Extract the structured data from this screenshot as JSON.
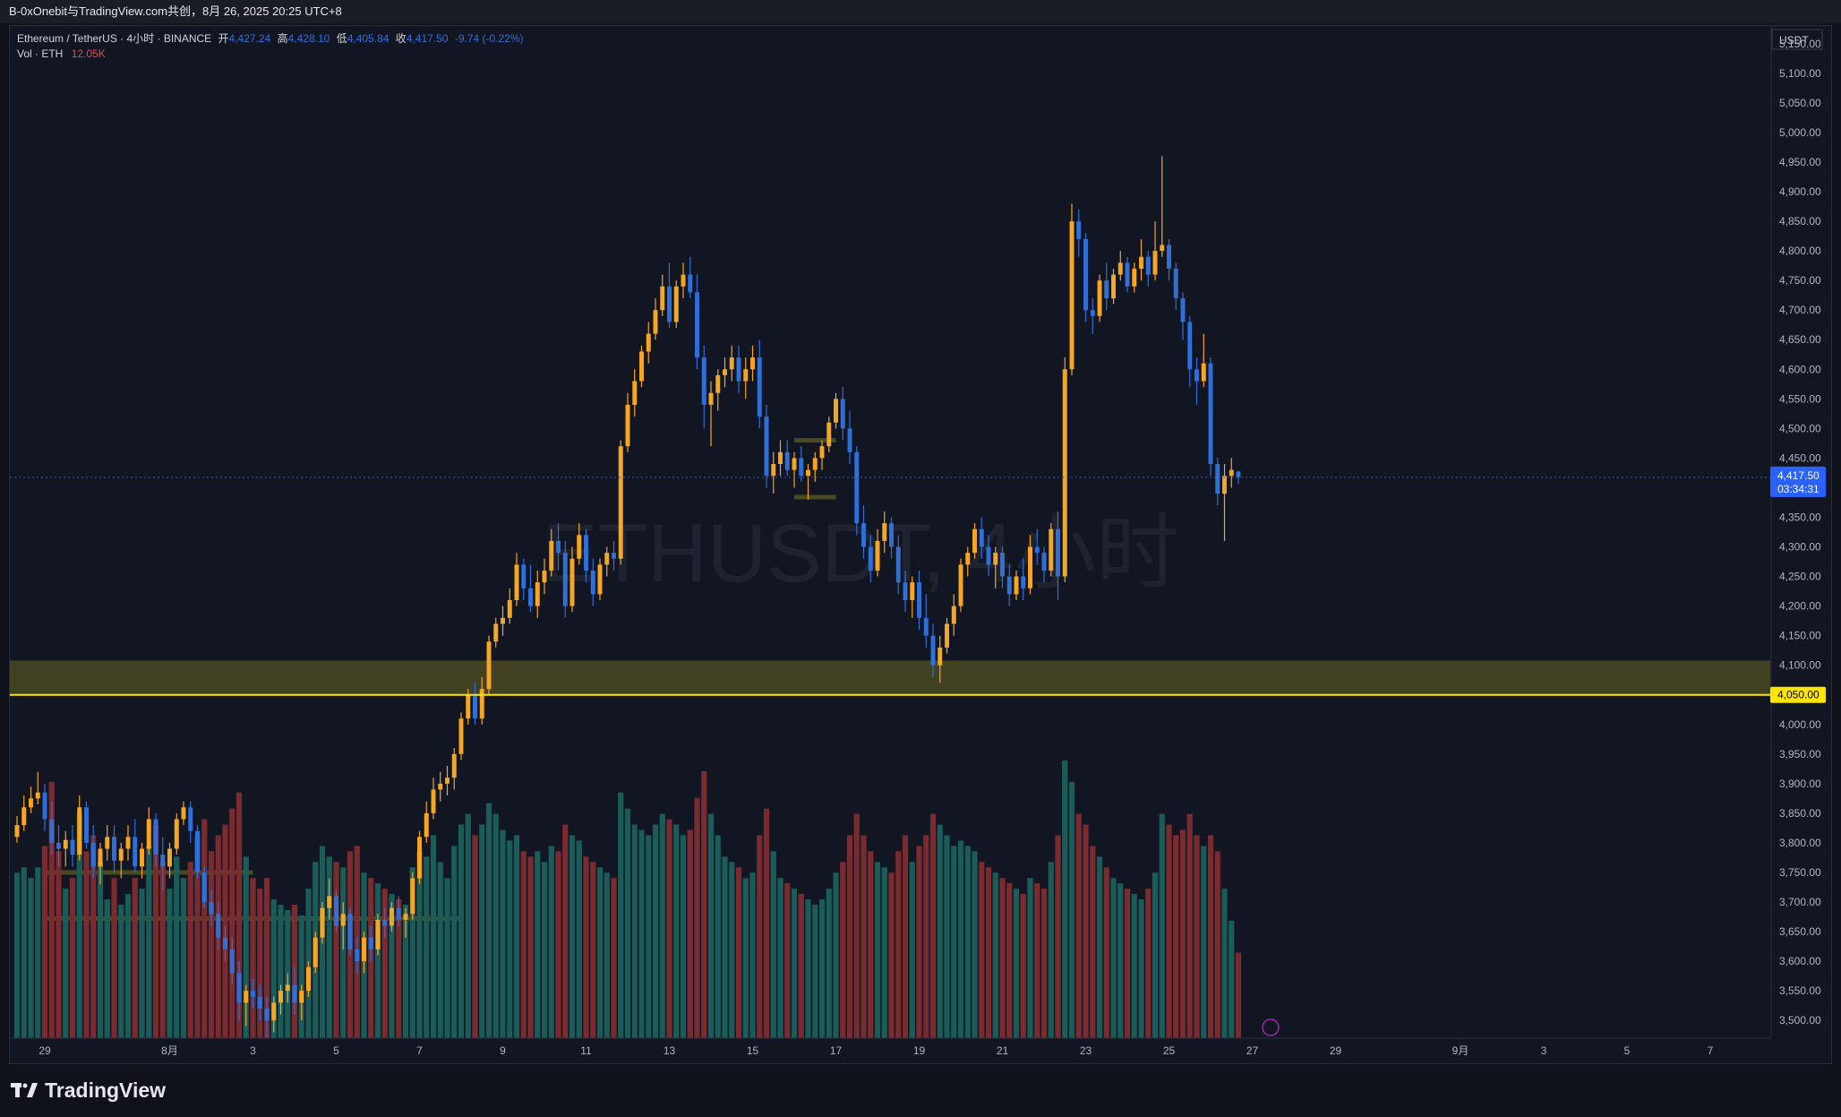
{
  "header": {
    "share_text": "B-0xOnebit与TradingView.com共创，8月 26, 2025 20:25 UTC+8"
  },
  "legend": {
    "symbol": "Ethereum / TetherUS · 4小时 · BINANCE",
    "open_label": "开",
    "open": "4,427.24",
    "high_label": "高",
    "high": "4,428.10",
    "low_label": "低",
    "low": "4,405.84",
    "close_label": "收",
    "close": "4,417.50",
    "change": "-9.74 (-0.22%)",
    "volume_label": "Vol · ETH",
    "volume": "12.05K"
  },
  "watermark": "ETHUSDT, 4小时",
  "footer": {
    "brand": "TradingView"
  },
  "chart_data": {
    "type": "candlestick",
    "currency": "USDT",
    "y_axis": {
      "ylim": [
        3470,
        5180
      ],
      "ticks": [
        "5,150.00",
        "5,100.00",
        "5,050.00",
        "5,000.00",
        "4,950.00",
        "4,900.00",
        "4,850.00",
        "4,800.00",
        "4,750.00",
        "4,700.00",
        "4,650.00",
        "4,600.00",
        "4,550.00",
        "4,500.00",
        "4,450.00",
        "4,400.00",
        "4,350.00",
        "4,300.00",
        "4,250.00",
        "4,200.00",
        "4,150.00",
        "4,100.00",
        "4,050.00",
        "4,000.00",
        "3,950.00",
        "3,900.00",
        "3,850.00",
        "3,800.00",
        "3,750.00",
        "3,700.00",
        "3,650.00",
        "3,600.00",
        "3,550.00",
        "3,500.00"
      ]
    },
    "x_axis": {
      "tick_labels": [
        "29",
        "8月",
        "3",
        "5",
        "7",
        "9",
        "11",
        "13",
        "15",
        "17",
        "19",
        "21",
        "23",
        "25",
        "27",
        "29",
        "9月",
        "3",
        "5",
        "7"
      ],
      "tick_dates": [
        "2025-07-29",
        "2025-08-01",
        "2025-08-03",
        "2025-08-05",
        "2025-08-07",
        "2025-08-09",
        "2025-08-11",
        "2025-08-13",
        "2025-08-15",
        "2025-08-17",
        "2025-08-19",
        "2025-08-21",
        "2025-08-23",
        "2025-08-25",
        "2025-08-27",
        "2025-08-29",
        "2025-09-01",
        "2025-09-03",
        "2025-09-05",
        "2025-09-07"
      ]
    },
    "price_labels": {
      "last_price": "4,417.50",
      "countdown": "03:34:31",
      "level": "4,050.00"
    },
    "zones": [
      {
        "from_price": 4050,
        "to_price": 4108,
        "color": "#4a4a22"
      },
      {
        "price": 3750,
        "from": "2025-07-29",
        "to": "2025-08-03",
        "color": "#4a4a22"
      },
      {
        "price": 3672,
        "from": "2025-07-29",
        "to": "2025-08-08",
        "color": "#4a4a22"
      },
      {
        "price": 4480,
        "from": "2025-08-16",
        "to": "2025-08-17",
        "color": "#4a4a22"
      },
      {
        "price": 4384,
        "from": "2025-08-16",
        "to": "2025-08-17",
        "color": "#4a4a22"
      }
    ],
    "horizontal_line": {
      "price": 4050,
      "color": "#ffe600"
    },
    "colors": {
      "up": "#f5a623",
      "down": "#2f6fd6",
      "vol_up": "#1a5c58",
      "vol_down": "#7a2b30",
      "zone": "#4a4a22",
      "level_line": "#ffe600",
      "last_price_bg": "#2962ff"
    },
    "first_bar_time": "2025-07-28 08:00",
    "bar_interval_hours": 4,
    "ohlcv": [
      [
        3810,
        3845,
        3800,
        3830,
        310
      ],
      [
        3830,
        3880,
        3820,
        3860,
        320
      ],
      [
        3860,
        3895,
        3850,
        3875,
        300
      ],
      [
        3875,
        3920,
        3865,
        3885,
        320
      ],
      [
        3885,
        3900,
        3820,
        3840,
        360
      ],
      [
        3840,
        3870,
        3780,
        3800,
        480
      ],
      [
        3800,
        3830,
        3760,
        3790,
        350
      ],
      [
        3790,
        3820,
        3760,
        3805,
        280
      ],
      [
        3805,
        3830,
        3760,
        3780,
        300
      ],
      [
        3780,
        3880,
        3770,
        3860,
        420
      ],
      [
        3860,
        3870,
        3790,
        3800,
        350
      ],
      [
        3800,
        3830,
        3740,
        3760,
        380
      ],
      [
        3760,
        3800,
        3730,
        3790,
        330
      ],
      [
        3790,
        3830,
        3770,
        3810,
        260
      ],
      [
        3810,
        3830,
        3750,
        3770,
        300
      ],
      [
        3770,
        3800,
        3740,
        3790,
        250
      ],
      [
        3790,
        3830,
        3770,
        3810,
        270
      ],
      [
        3810,
        3840,
        3750,
        3760,
        300
      ],
      [
        3760,
        3800,
        3740,
        3790,
        280
      ],
      [
        3790,
        3860,
        3780,
        3840,
        360
      ],
      [
        3840,
        3850,
        3760,
        3780,
        400
      ],
      [
        3780,
        3810,
        3720,
        3760,
        330
      ],
      [
        3760,
        3800,
        3740,
        3790,
        280
      ],
      [
        3790,
        3850,
        3780,
        3840,
        340
      ],
      [
        3840,
        3870,
        3830,
        3860,
        300
      ],
      [
        3860,
        3870,
        3800,
        3820,
        330
      ],
      [
        3820,
        3830,
        3740,
        3750,
        380
      ],
      [
        3750,
        3760,
        3690,
        3700,
        410
      ],
      [
        3700,
        3720,
        3660,
        3680,
        350
      ],
      [
        3680,
        3700,
        3620,
        3640,
        380
      ],
      [
        3640,
        3660,
        3600,
        3620,
        400
      ],
      [
        3620,
        3640,
        3560,
        3580,
        430
      ],
      [
        3580,
        3600,
        3500,
        3530,
        460
      ],
      [
        3530,
        3560,
        3490,
        3550,
        340
      ],
      [
        3550,
        3570,
        3520,
        3540,
        300
      ],
      [
        3540,
        3560,
        3500,
        3520,
        280
      ],
      [
        3520,
        3540,
        3470,
        3500,
        300
      ],
      [
        3500,
        3540,
        3480,
        3530,
        260
      ],
      [
        3530,
        3560,
        3510,
        3550,
        250
      ],
      [
        3550,
        3580,
        3530,
        3560,
        240
      ],
      [
        3560,
        3590,
        3510,
        3530,
        250
      ],
      [
        3530,
        3560,
        3500,
        3550,
        230
      ],
      [
        3550,
        3600,
        3540,
        3590,
        280
      ],
      [
        3590,
        3650,
        3580,
        3640,
        330
      ],
      [
        3640,
        3700,
        3630,
        3690,
        360
      ],
      [
        3690,
        3740,
        3670,
        3710,
        340
      ],
      [
        3710,
        3720,
        3650,
        3660,
        330
      ],
      [
        3660,
        3700,
        3620,
        3680,
        320
      ],
      [
        3680,
        3690,
        3610,
        3620,
        350
      ],
      [
        3620,
        3640,
        3580,
        3600,
        360
      ],
      [
        3600,
        3650,
        3580,
        3640,
        310
      ],
      [
        3640,
        3660,
        3600,
        3620,
        300
      ],
      [
        3620,
        3680,
        3610,
        3670,
        290
      ],
      [
        3670,
        3690,
        3640,
        3660,
        280
      ],
      [
        3660,
        3700,
        3650,
        3690,
        270
      ],
      [
        3690,
        3710,
        3660,
        3670,
        260
      ],
      [
        3670,
        3690,
        3640,
        3680,
        250
      ],
      [
        3680,
        3750,
        3670,
        3740,
        320
      ],
      [
        3740,
        3820,
        3730,
        3810,
        350
      ],
      [
        3810,
        3870,
        3800,
        3850,
        340
      ],
      [
        3850,
        3910,
        3840,
        3890,
        380
      ],
      [
        3890,
        3920,
        3870,
        3900,
        330
      ],
      [
        3900,
        3930,
        3880,
        3910,
        300
      ],
      [
        3910,
        3960,
        3890,
        3950,
        360
      ],
      [
        3950,
        4020,
        3940,
        4010,
        400
      ],
      [
        4010,
        4060,
        4000,
        4050,
        420
      ],
      [
        4050,
        4070,
        4000,
        4010,
        380
      ],
      [
        4010,
        4080,
        4000,
        4060,
        400
      ],
      [
        4060,
        4150,
        4050,
        4140,
        440
      ],
      [
        4140,
        4180,
        4130,
        4170,
        420
      ],
      [
        4170,
        4200,
        4150,
        4180,
        390
      ],
      [
        4180,
        4230,
        4170,
        4210,
        370
      ],
      [
        4210,
        4290,
        4200,
        4270,
        380
      ],
      [
        4270,
        4280,
        4210,
        4230,
        350
      ],
      [
        4230,
        4270,
        4190,
        4200,
        340
      ],
      [
        4200,
        4260,
        4180,
        4240,
        350
      ],
      [
        4240,
        4280,
        4220,
        4260,
        330
      ],
      [
        4260,
        4330,
        4250,
        4310,
        360
      ],
      [
        4310,
        4340,
        4260,
        4290,
        350
      ],
      [
        4290,
        4310,
        4180,
        4200,
        400
      ],
      [
        4200,
        4300,
        4190,
        4280,
        380
      ],
      [
        4280,
        4340,
        4270,
        4320,
        370
      ],
      [
        4320,
        4330,
        4240,
        4260,
        340
      ],
      [
        4260,
        4280,
        4200,
        4220,
        330
      ],
      [
        4220,
        4280,
        4210,
        4270,
        320
      ],
      [
        4270,
        4300,
        4250,
        4290,
        310
      ],
      [
        4290,
        4310,
        4260,
        4280,
        300
      ],
      [
        4280,
        4480,
        4270,
        4470,
        460
      ],
      [
        4470,
        4560,
        4460,
        4540,
        430
      ],
      [
        4540,
        4600,
        4520,
        4580,
        400
      ],
      [
        4580,
        4640,
        4570,
        4630,
        390
      ],
      [
        4630,
        4680,
        4610,
        4660,
        380
      ],
      [
        4660,
        4720,
        4650,
        4700,
        400
      ],
      [
        4700,
        4760,
        4690,
        4740,
        420
      ],
      [
        4740,
        4780,
        4670,
        4680,
        410
      ],
      [
        4680,
        4750,
        4670,
        4740,
        400
      ],
      [
        4740,
        4780,
        4720,
        4760,
        380
      ],
      [
        4760,
        4790,
        4720,
        4730,
        390
      ],
      [
        4730,
        4760,
        4600,
        4620,
        450
      ],
      [
        4620,
        4640,
        4500,
        4540,
        500
      ],
      [
        4540,
        4580,
        4470,
        4560,
        420
      ],
      [
        4560,
        4600,
        4530,
        4590,
        380
      ],
      [
        4590,
        4620,
        4570,
        4600,
        340
      ],
      [
        4600,
        4640,
        4580,
        4620,
        330
      ],
      [
        4620,
        4640,
        4560,
        4580,
        320
      ],
      [
        4580,
        4620,
        4550,
        4600,
        300
      ],
      [
        4600,
        4640,
        4580,
        4620,
        310
      ],
      [
        4620,
        4650,
        4500,
        4520,
        380
      ],
      [
        4520,
        4540,
        4400,
        4420,
        430
      ],
      [
        4420,
        4460,
        4390,
        4440,
        350
      ],
      [
        4440,
        4480,
        4420,
        4460,
        300
      ],
      [
        4460,
        4480,
        4420,
        4430,
        290
      ],
      [
        4430,
        4460,
        4400,
        4450,
        280
      ],
      [
        4450,
        4470,
        4410,
        4420,
        270
      ],
      [
        4420,
        4440,
        4380,
        4430,
        260
      ],
      [
        4430,
        4460,
        4410,
        4450,
        250
      ],
      [
        4450,
        4480,
        4430,
        4470,
        260
      ],
      [
        4470,
        4520,
        4460,
        4510,
        280
      ],
      [
        4510,
        4560,
        4500,
        4550,
        310
      ],
      [
        4550,
        4570,
        4480,
        4500,
        330
      ],
      [
        4500,
        4530,
        4440,
        4460,
        380
      ],
      [
        4460,
        4470,
        4320,
        4340,
        420
      ],
      [
        4340,
        4370,
        4280,
        4300,
        380
      ],
      [
        4300,
        4320,
        4240,
        4260,
        350
      ],
      [
        4260,
        4330,
        4250,
        4310,
        330
      ],
      [
        4310,
        4360,
        4290,
        4340,
        320
      ],
      [
        4340,
        4350,
        4280,
        4300,
        310
      ],
      [
        4300,
        4320,
        4220,
        4240,
        350
      ],
      [
        4240,
        4260,
        4190,
        4210,
        380
      ],
      [
        4210,
        4250,
        4180,
        4240,
        330
      ],
      [
        4240,
        4260,
        4160,
        4180,
        360
      ],
      [
        4180,
        4220,
        4130,
        4150,
        380
      ],
      [
        4150,
        4170,
        4080,
        4100,
        420
      ],
      [
        4100,
        4150,
        4070,
        4130,
        400
      ],
      [
        4130,
        4180,
        4120,
        4170,
        380
      ],
      [
        4170,
        4220,
        4150,
        4200,
        360
      ],
      [
        4200,
        4280,
        4190,
        4270,
        370
      ],
      [
        4270,
        4300,
        4250,
        4290,
        360
      ],
      [
        4290,
        4340,
        4280,
        4330,
        350
      ],
      [
        4330,
        4350,
        4280,
        4300,
        330
      ],
      [
        4300,
        4320,
        4250,
        4270,
        320
      ],
      [
        4270,
        4300,
        4230,
        4290,
        310
      ],
      [
        4290,
        4300,
        4230,
        4250,
        300
      ],
      [
        4250,
        4270,
        4200,
        4220,
        290
      ],
      [
        4220,
        4260,
        4210,
        4250,
        280
      ],
      [
        4250,
        4280,
        4210,
        4230,
        270
      ],
      [
        4230,
        4320,
        4220,
        4300,
        300
      ],
      [
        4300,
        4330,
        4270,
        4290,
        290
      ],
      [
        4290,
        4300,
        4240,
        4260,
        280
      ],
      [
        4260,
        4340,
        4250,
        4330,
        330
      ],
      [
        4330,
        4360,
        4210,
        4250,
        380
      ],
      [
        4250,
        4620,
        4240,
        4600,
        520
      ],
      [
        4600,
        4880,
        4590,
        4850,
        480
      ],
      [
        4850,
        4870,
        4790,
        4820,
        420
      ],
      [
        4820,
        4830,
        4680,
        4700,
        400
      ],
      [
        4700,
        4720,
        4660,
        4690,
        360
      ],
      [
        4690,
        4760,
        4680,
        4750,
        340
      ],
      [
        4750,
        4780,
        4700,
        4720,
        320
      ],
      [
        4720,
        4770,
        4710,
        4760,
        300
      ],
      [
        4760,
        4800,
        4750,
        4780,
        290
      ],
      [
        4780,
        4790,
        4730,
        4740,
        280
      ],
      [
        4740,
        4780,
        4730,
        4770,
        270
      ],
      [
        4770,
        4820,
        4750,
        4790,
        260
      ],
      [
        4790,
        4800,
        4740,
        4760,
        280
      ],
      [
        4760,
        4850,
        4750,
        4800,
        310
      ],
      [
        4800,
        4960,
        4790,
        4810,
        420
      ],
      [
        4810,
        4820,
        4750,
        4770,
        400
      ],
      [
        4770,
        4780,
        4700,
        4720,
        380
      ],
      [
        4720,
        4730,
        4650,
        4680,
        390
      ],
      [
        4680,
        4690,
        4570,
        4600,
        420
      ],
      [
        4600,
        4620,
        4540,
        4580,
        380
      ],
      [
        4580,
        4660,
        4570,
        4610,
        360
      ],
      [
        4610,
        4620,
        4420,
        4440,
        380
      ],
      [
        4440,
        4450,
        4370,
        4390,
        350
      ],
      [
        4390,
        4440,
        4310,
        4420,
        280
      ],
      [
        4420,
        4450,
        4400,
        4430,
        220
      ],
      [
        4427.24,
        4428.1,
        4405.84,
        4417.5,
        160
      ]
    ]
  }
}
